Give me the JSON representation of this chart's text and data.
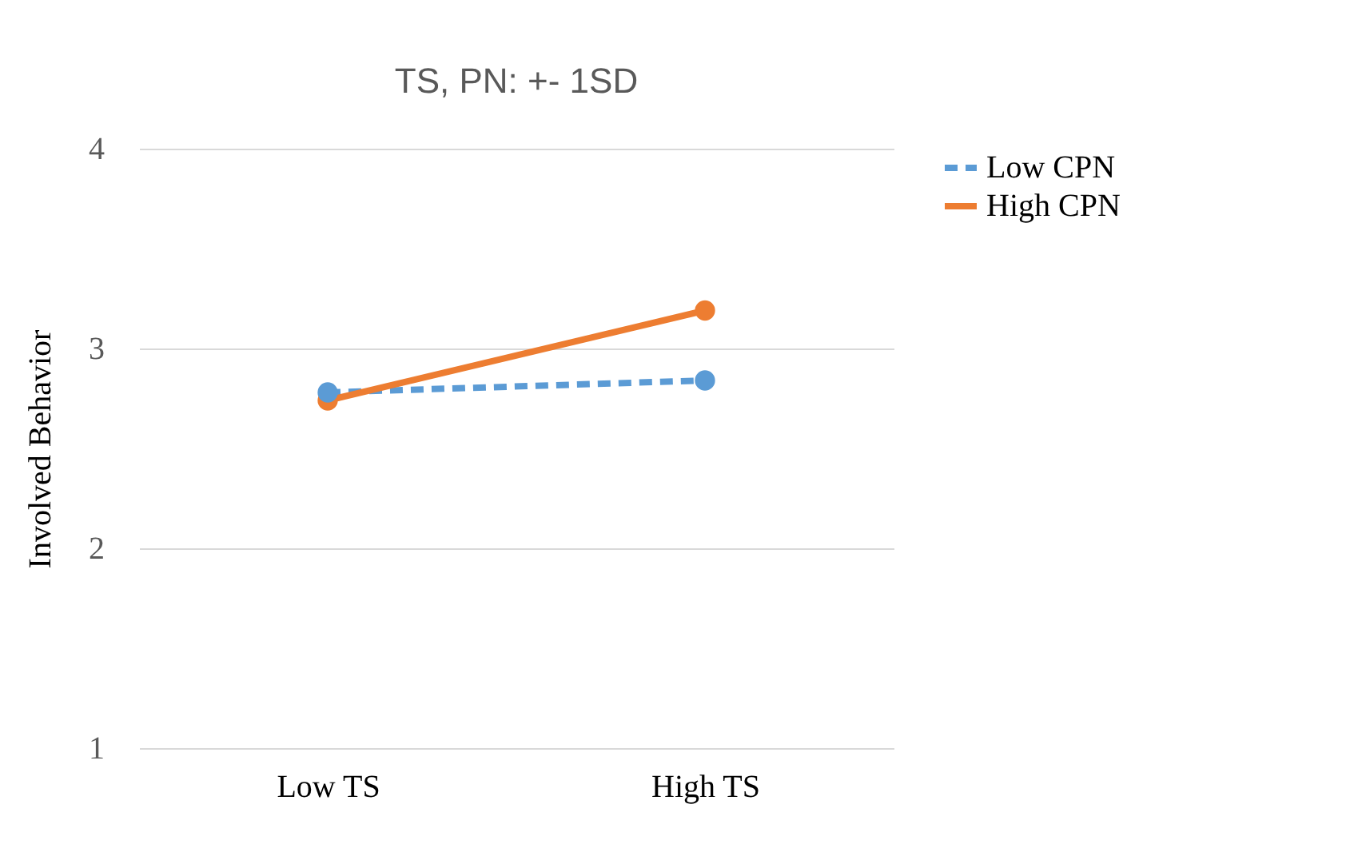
{
  "chart_data": {
    "type": "line",
    "title": "TS, PN: +- 1SD",
    "ylabel": "Involved Behavior",
    "categories": [
      "Low TS",
      "High TS"
    ],
    "series": [
      {
        "name": "Low CPN",
        "color": "#5b9bd5",
        "values": [
          2.78,
          2.84
        ],
        "line_style": "dashed"
      },
      {
        "name": "High CPN",
        "color": "#ed7d31",
        "values": [
          2.74,
          3.19
        ],
        "line_style": "solid"
      }
    ],
    "ylim": [
      1,
      4
    ],
    "yticks": [
      1,
      2,
      3,
      4
    ],
    "grid": "y",
    "legend": "right",
    "marker": "circle"
  }
}
